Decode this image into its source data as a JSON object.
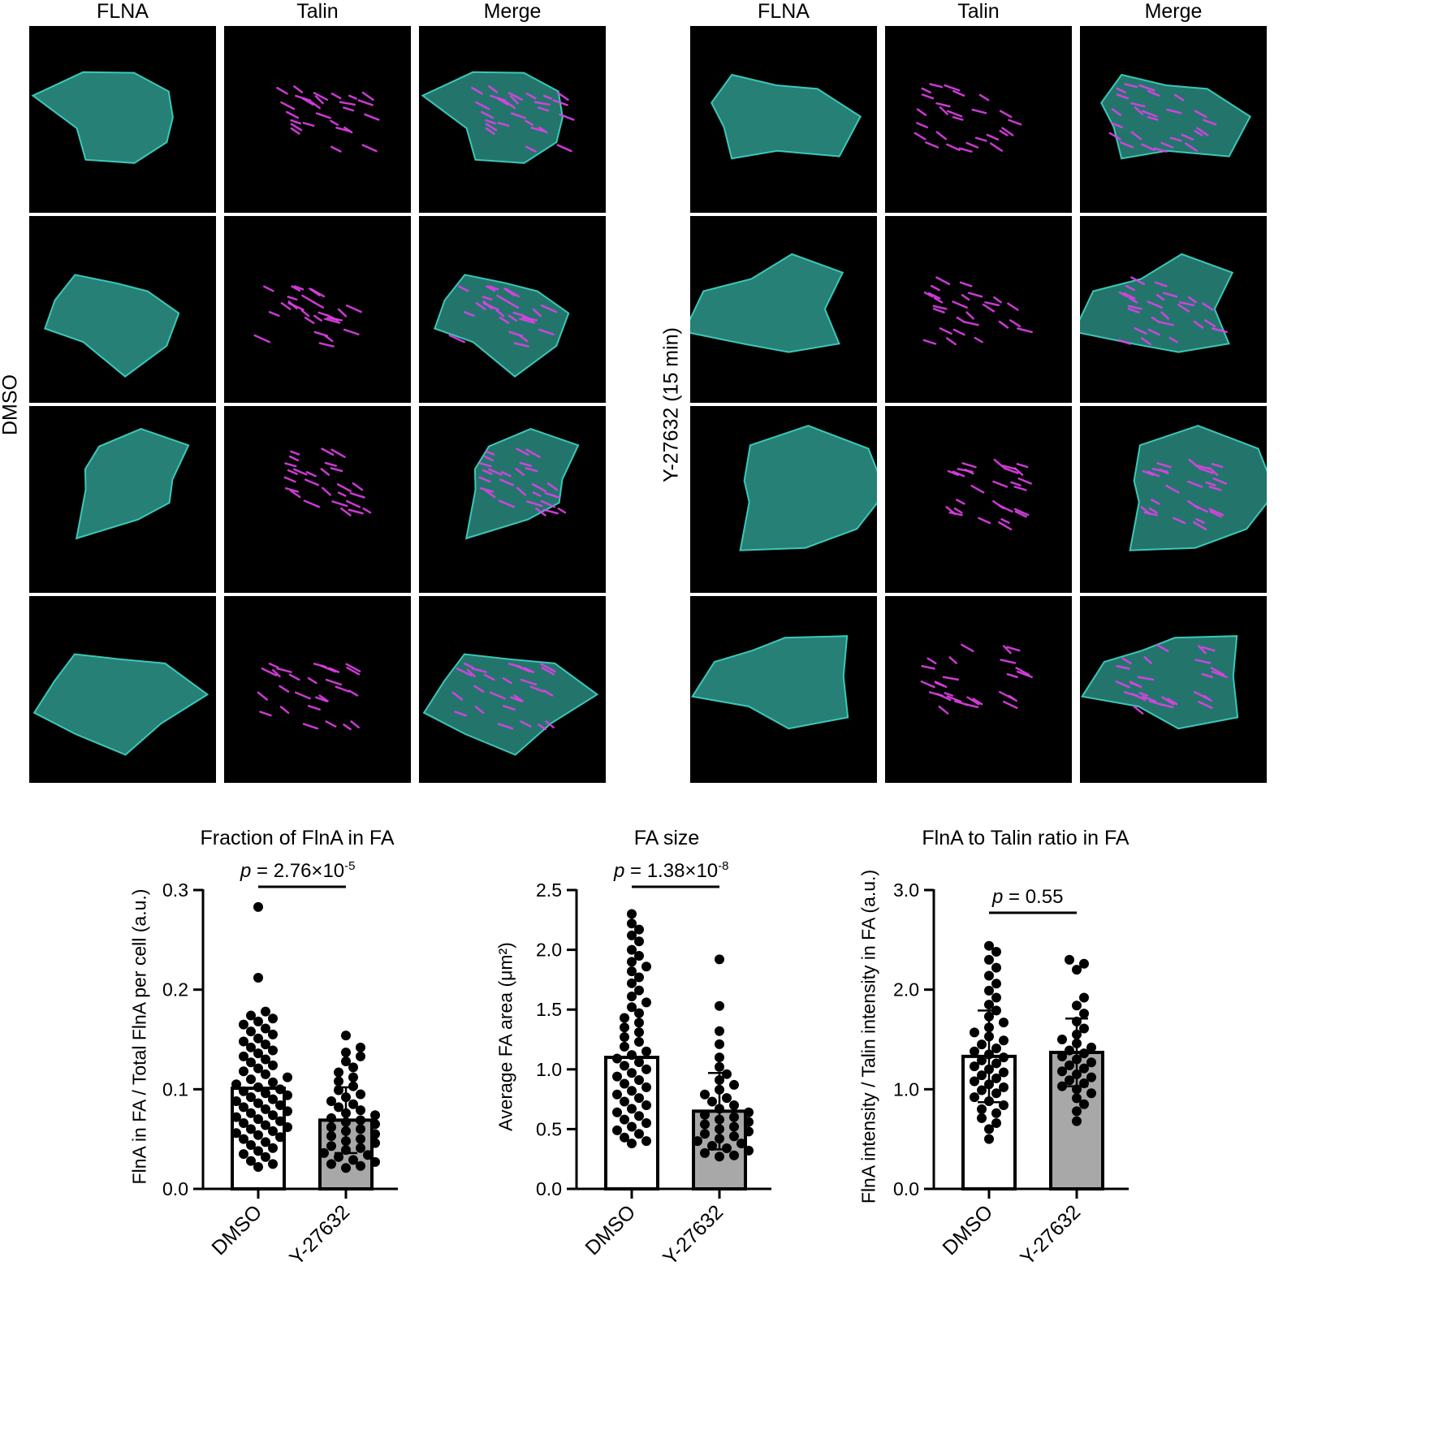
{
  "panels": {
    "column_headers": [
      "FLNA",
      "Talin",
      "Merge"
    ],
    "left_group_label": "DMSO",
    "right_group_label": "Y-27632 (15 min)",
    "colors": {
      "flna": "#3fd6c4",
      "talin": "#e040e8",
      "background": "#000000"
    }
  },
  "chart_data": [
    {
      "type": "bar",
      "title": "Fraction of FlnA in FA",
      "ylabel": "FlnA in FA / Total FlnA per cell (a.u.)",
      "categories": [
        "DMSO",
        "Y-27632"
      ],
      "values": [
        0.101,
        0.069
      ],
      "errors": [
        0.0,
        0.033
      ],
      "ylim": [
        0,
        0.3
      ],
      "yticks": [
        0.0,
        0.1,
        0.2,
        0.3
      ],
      "ytick_labels": [
        "0.0",
        "0.1",
        "0.2",
        "0.3"
      ],
      "p_prefix": "p",
      "p_text": " = 2.76×10",
      "p_exp": "-5",
      "bar_colors": [
        "#ffffff",
        "#a8a8a8"
      ],
      "points": [
        [
          0.283,
          0.212,
          0.178,
          0.174,
          0.171,
          0.168,
          0.165,
          0.161,
          0.158,
          0.155,
          0.151,
          0.148,
          0.145,
          0.142,
          0.139,
          0.136,
          0.133,
          0.13,
          0.127,
          0.124,
          0.121,
          0.118,
          0.115,
          0.112,
          0.11,
          0.107,
          0.105,
          0.102,
          0.1,
          0.098,
          0.096,
          0.094,
          0.092,
          0.09,
          0.088,
          0.086,
          0.084,
          0.082,
          0.08,
          0.078,
          0.076,
          0.074,
          0.072,
          0.07,
          0.068,
          0.066,
          0.064,
          0.062,
          0.06,
          0.058,
          0.056,
          0.054,
          0.052,
          0.05,
          0.047,
          0.044,
          0.041,
          0.038,
          0.035,
          0.032,
          0.028,
          0.025,
          0.022
        ],
        [
          0.154,
          0.142,
          0.137,
          0.133,
          0.128,
          0.122,
          0.117,
          0.112,
          0.108,
          0.103,
          0.099,
          0.095,
          0.092,
          0.088,
          0.085,
          0.082,
          0.079,
          0.076,
          0.074,
          0.071,
          0.069,
          0.067,
          0.065,
          0.062,
          0.06,
          0.058,
          0.055,
          0.053,
          0.05,
          0.048,
          0.046,
          0.043,
          0.041,
          0.039,
          0.036,
          0.034,
          0.032,
          0.029,
          0.027,
          0.025,
          0.023,
          0.021
        ]
      ]
    },
    {
      "type": "bar",
      "title": "FA size",
      "ylabel": "Average FA area (μm²)",
      "categories": [
        "DMSO",
        "Y-27632"
      ],
      "values": [
        1.1,
        0.65
      ],
      "errors": [
        0.0,
        0.32
      ],
      "ylim": [
        0,
        2.5
      ],
      "yticks": [
        0.0,
        0.5,
        1.0,
        1.5,
        2.0,
        2.5
      ],
      "ytick_labels": [
        "0.0",
        "0.5",
        "1.0",
        "1.5",
        "2.0",
        "2.5"
      ],
      "p_prefix": "p",
      "p_text": " = 1.38×10",
      "p_exp": "-8",
      "bar_colors": [
        "#ffffff",
        "#a8a8a8"
      ],
      "points": [
        [
          2.3,
          2.22,
          2.17,
          2.12,
          2.07,
          2.0,
          1.95,
          1.9,
          1.86,
          1.82,
          1.77,
          1.72,
          1.66,
          1.61,
          1.56,
          1.52,
          1.47,
          1.43,
          1.39,
          1.35,
          1.31,
          1.27,
          1.23,
          1.19,
          1.15,
          1.12,
          1.09,
          1.06,
          1.03,
          1.0,
          0.97,
          0.94,
          0.91,
          0.88,
          0.85,
          0.82,
          0.79,
          0.76,
          0.73,
          0.7,
          0.67,
          0.64,
          0.61,
          0.58,
          0.55,
          0.52,
          0.49,
          0.46,
          0.43,
          0.4,
          0.38
        ],
        [
          1.92,
          1.53,
          1.32,
          1.21,
          1.1,
          1.02,
          0.96,
          0.91,
          0.87,
          0.83,
          0.79,
          0.76,
          0.73,
          0.7,
          0.67,
          0.64,
          0.62,
          0.6,
          0.58,
          0.56,
          0.54,
          0.52,
          0.5,
          0.48,
          0.46,
          0.44,
          0.42,
          0.4,
          0.38,
          0.36,
          0.34,
          0.32,
          0.3,
          0.28,
          0.27
        ]
      ]
    },
    {
      "type": "bar",
      "title": "FlnA to Talin ratio in FA",
      "ylabel": "FlnA intensity / Talin intensity in FA (a.u.)",
      "categories": [
        "DMSO",
        "Y-27632"
      ],
      "values": [
        1.33,
        1.37
      ],
      "errors": [
        0.46,
        0.34
      ],
      "ylim": [
        0,
        3.0
      ],
      "yticks": [
        0.0,
        1.0,
        2.0,
        3.0
      ],
      "ytick_labels": [
        "0.0",
        "1.0",
        "2.0",
        "3.0"
      ],
      "p_prefix": "p",
      "p_text": " = 0.55",
      "p_exp": "",
      "bar_colors": [
        "#ffffff",
        "#a8a8a8"
      ],
      "points": [
        [
          2.44,
          2.38,
          2.3,
          2.22,
          2.14,
          2.06,
          1.99,
          1.92,
          1.85,
          1.79,
          1.73,
          1.67,
          1.62,
          1.57,
          1.53,
          1.49,
          1.45,
          1.41,
          1.38,
          1.35,
          1.32,
          1.29,
          1.26,
          1.23,
          1.2,
          1.17,
          1.14,
          1.11,
          1.08,
          1.05,
          1.02,
          0.99,
          0.96,
          0.92,
          0.88,
          0.84,
          0.8,
          0.76,
          0.71,
          0.66,
          0.6,
          0.5
        ],
        [
          2.3,
          2.26,
          2.2,
          1.92,
          1.84,
          1.76,
          1.68,
          1.61,
          1.55,
          1.5,
          1.46,
          1.42,
          1.39,
          1.36,
          1.33,
          1.3,
          1.27,
          1.24,
          1.21,
          1.18,
          1.15,
          1.12,
          1.09,
          1.06,
          1.03,
          1.0,
          0.96,
          0.91,
          0.85,
          0.78,
          0.68
        ]
      ]
    }
  ]
}
